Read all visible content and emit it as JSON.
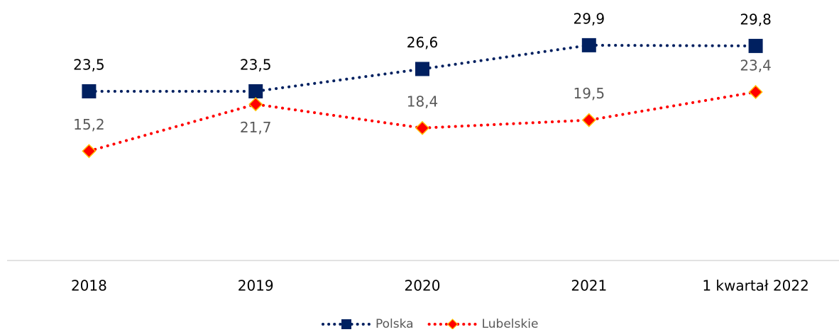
{
  "chart_data": {
    "type": "line",
    "categories": [
      "2018",
      "2019",
      "2020",
      "2021",
      "1 kwartał 2022"
    ],
    "series": [
      {
        "name": "Polska",
        "color": "#002060",
        "marker": "square",
        "values": [
          23.5,
          23.5,
          26.6,
          29.9,
          29.8
        ],
        "value_labels": [
          "23,5",
          "23,5",
          "26,6",
          "29,9",
          "29,8"
        ]
      },
      {
        "name": "Lubelskie",
        "color": "#ff0000",
        "marker": "diamond",
        "marker_edge": "#ffc000",
        "values": [
          15.2,
          21.7,
          18.4,
          19.5,
          23.4
        ],
        "value_labels": [
          "15,2",
          "21,7",
          "18,4",
          "19,5",
          "23,4"
        ]
      }
    ],
    "ylim": [
      0,
      35
    ],
    "grid": false,
    "legend": "bottom"
  }
}
